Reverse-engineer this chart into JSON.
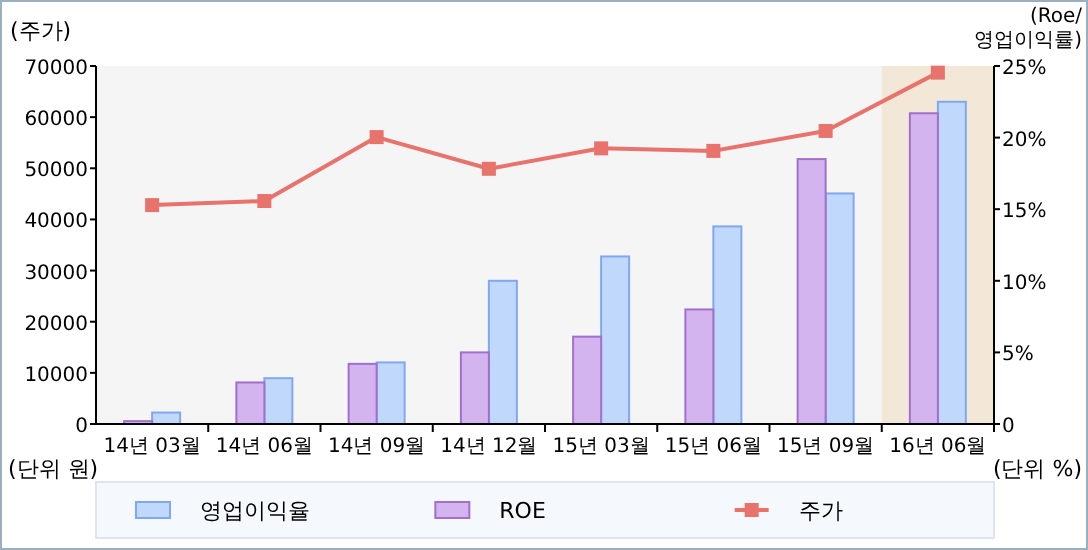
{
  "chart_data": {
    "type": "bar",
    "categories": [
      "14년 03월",
      "14년 06월",
      "14년 09월",
      "14년 12월",
      "15년 03월",
      "15년 06월",
      "15년 09월",
      "16년 06월"
    ],
    "ylabel": "(주가)",
    "y2label": "(Roe/\n영업이익률)",
    "annotations": [
      "(단위 원)",
      "(단위 %)"
    ],
    "ylim": [
      0,
      70000
    ],
    "yticks": [
      0,
      10000,
      20000,
      30000,
      40000,
      50000,
      60000,
      70000
    ],
    "y2lim": [
      0,
      25
    ],
    "y2ticks": [
      0,
      {
        "value": 5,
        "label": "5%"
      },
      {
        "value": 10,
        "label": "10%"
      },
      {
        "value": 15,
        "label": "15%"
      },
      {
        "value": 20,
        "label": "20%"
      },
      {
        "value": 25,
        "label": "25%"
      }
    ],
    "series": [
      {
        "name": "영업이익율",
        "axis": "y2",
        "color": "#c0d8fc",
        "values": [
          0.8,
          3.2,
          4.3,
          10.0,
          11.7,
          13.8,
          16.1,
          22.5
        ]
      },
      {
        "name": "ROE",
        "axis": "y2",
        "color": "#d4b4ee",
        "values": [
          0.2,
          2.9,
          4.2,
          5.0,
          6.1,
          8.0,
          18.5,
          21.7
        ]
      },
      {
        "name": "주가",
        "type": "line",
        "color": "#e8736c",
        "values": [
          42800,
          43600,
          56100,
          49900,
          53900,
          53400,
          57300,
          68700
        ]
      }
    ],
    "bands": [
      {
        "axis": "x",
        "from": "16년 06월",
        "to": "16년 06월",
        "color": "#f3e8d8"
      }
    ],
    "marker": "square",
    "line_style": "solid",
    "grid": false,
    "legend": "bottom"
  }
}
